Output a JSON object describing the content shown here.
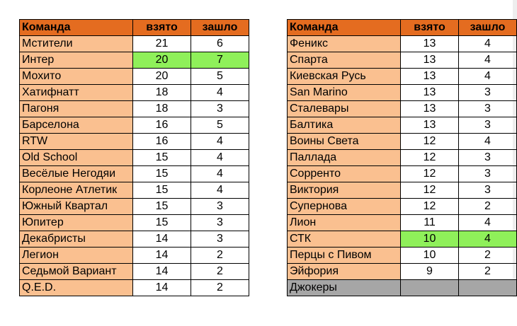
{
  "left_table": {
    "headers": [
      "Команда",
      "взято",
      "зашло"
    ],
    "rows": [
      {
        "team": "Мстители",
        "taken": "21",
        "scored": "6",
        "highlight": false
      },
      {
        "team": "Интер",
        "taken": "20",
        "scored": "7",
        "highlight": true
      },
      {
        "team": "Мохито",
        "taken": "20",
        "scored": "5",
        "highlight": false
      },
      {
        "team": "Хатифнатт",
        "taken": "18",
        "scored": "4",
        "highlight": false
      },
      {
        "team": "Пагоня",
        "taken": "18",
        "scored": "3",
        "highlight": false
      },
      {
        "team": "Барселона",
        "taken": "16",
        "scored": "5",
        "highlight": false
      },
      {
        "team": "RTW",
        "taken": "16",
        "scored": "4",
        "highlight": false
      },
      {
        "team": "Old School",
        "taken": "15",
        "scored": "4",
        "highlight": false
      },
      {
        "team": "Весёлые Негодяи",
        "taken": "15",
        "scored": "4",
        "highlight": false
      },
      {
        "team": "Корлеоне Атлетик",
        "taken": "15",
        "scored": "4",
        "highlight": false
      },
      {
        "team": "Южный Квартал",
        "taken": "15",
        "scored": "3",
        "highlight": false
      },
      {
        "team": "Юпитер",
        "taken": "15",
        "scored": "3",
        "highlight": false
      },
      {
        "team": "Декабристы",
        "taken": "14",
        "scored": "3",
        "highlight": false
      },
      {
        "team": "Легион",
        "taken": "14",
        "scored": "2",
        "highlight": false
      },
      {
        "team": "Седьмой Вариант",
        "taken": "14",
        "scored": "2",
        "highlight": false
      },
      {
        "team": "Q.E.D.",
        "taken": "14",
        "scored": "2",
        "highlight": false
      }
    ]
  },
  "right_table": {
    "headers": [
      "Команда",
      "взято",
      "зашло"
    ],
    "rows": [
      {
        "team": "Феникс",
        "taken": "13",
        "scored": "4",
        "highlight": false
      },
      {
        "team": "Спарта",
        "taken": "13",
        "scored": "4",
        "highlight": false
      },
      {
        "team": "Киевская Русь",
        "taken": "13",
        "scored": "4",
        "highlight": false
      },
      {
        "team": "San Marino",
        "taken": "13",
        "scored": "3",
        "highlight": false
      },
      {
        "team": "Сталевары",
        "taken": "13",
        "scored": "3",
        "highlight": false
      },
      {
        "team": "Балтика",
        "taken": "13",
        "scored": "3",
        "highlight": false
      },
      {
        "team": "Воины Света",
        "taken": "12",
        "scored": "4",
        "highlight": false
      },
      {
        "team": "Паллада",
        "taken": "12",
        "scored": "3",
        "highlight": false
      },
      {
        "team": "Сорренто",
        "taken": "12",
        "scored": "3",
        "highlight": false
      },
      {
        "team": "Виктория",
        "taken": "12",
        "scored": "3",
        "highlight": false
      },
      {
        "team": "Супернова",
        "taken": "12",
        "scored": "2",
        "highlight": false
      },
      {
        "team": "Лион",
        "taken": "11",
        "scored": "4",
        "highlight": false
      },
      {
        "team": "СТК",
        "taken": "10",
        "scored": "4",
        "highlight": true
      },
      {
        "team": "Перцы с Пивом",
        "taken": "10",
        "scored": "2",
        "highlight": false
      },
      {
        "team": "Эйфория",
        "taken": "9",
        "scored": "2",
        "highlight": false
      },
      {
        "team": "Джокеры",
        "taken": "",
        "scored": "",
        "highlight": false,
        "gray": true
      }
    ]
  },
  "colors": {
    "header": "#e46c20",
    "name_cell": "#fac090",
    "highlight": "#8ff05a",
    "gray_row": "#a6a6a6"
  }
}
